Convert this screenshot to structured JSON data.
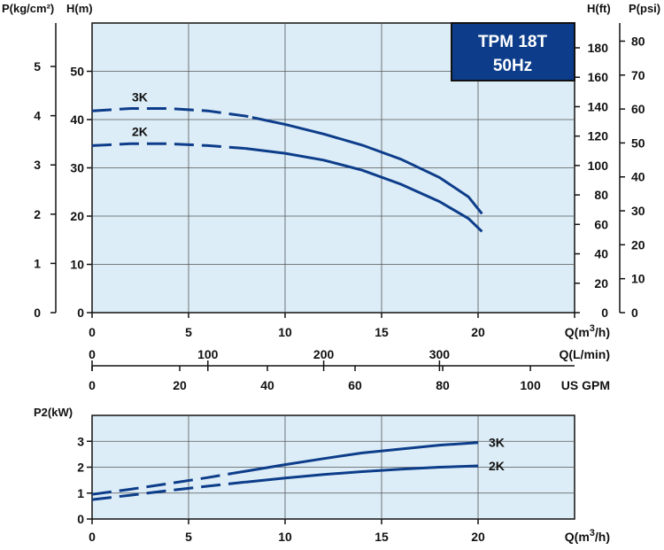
{
  "colors": {
    "plot_bg": "#dcedf7",
    "curve": "#0d3d8a",
    "axis": "#111111",
    "grid": "#555555",
    "title_bg": "#0d3d8a",
    "title_border": "#111111",
    "title_text": "#ffffff"
  },
  "chart_data": [
    {
      "type": "line",
      "title_lines": [
        "TPM 18T",
        "50Hz"
      ],
      "left_outer_axis": {
        "label": "P(kg/cm²)",
        "ticks": [
          {
            "v": 0,
            "t": "0"
          },
          {
            "v": 1,
            "t": "1"
          },
          {
            "v": 2,
            "t": "2"
          },
          {
            "v": 3,
            "t": "3"
          },
          {
            "v": 4,
            "t": "4"
          },
          {
            "v": 5,
            "t": "5"
          }
        ]
      },
      "left_inner_axis": {
        "label": "H(m)",
        "range": [
          0,
          60
        ],
        "ticks": [
          {
            "v": 0,
            "t": "0"
          },
          {
            "v": 10,
            "t": "10"
          },
          {
            "v": 20,
            "t": "20"
          },
          {
            "v": 30,
            "t": "30"
          },
          {
            "v": 40,
            "t": "40"
          },
          {
            "v": 50,
            "t": "50"
          }
        ]
      },
      "right_inner_axis": {
        "label": "H(ft)",
        "ticks": [
          {
            "v": 0,
            "t": "0"
          },
          {
            "v": 20,
            "t": "20"
          },
          {
            "v": 40,
            "t": "40"
          },
          {
            "v": 60,
            "t": "60"
          },
          {
            "v": 80,
            "t": "80"
          },
          {
            "v": 100,
            "t": "100"
          },
          {
            "v": 120,
            "t": "120"
          },
          {
            "v": 140,
            "t": "140"
          },
          {
            "v": 160,
            "t": "160"
          },
          {
            "v": 180,
            "t": "180"
          }
        ]
      },
      "right_outer_axis": {
        "label": "P(psi)",
        "ticks": [
          {
            "v": 0,
            "t": "0"
          },
          {
            "v": 10,
            "t": "10"
          },
          {
            "v": 20,
            "t": "20"
          },
          {
            "v": 30,
            "t": "30"
          },
          {
            "v": 40,
            "t": "40"
          },
          {
            "v": 50,
            "t": "50"
          },
          {
            "v": 60,
            "t": "60"
          },
          {
            "v": 70,
            "t": "70"
          },
          {
            "v": 80,
            "t": "80"
          }
        ]
      },
      "x_axis": {
        "label_main": "Q(m",
        "label_sup": "3",
        "label_end": "/h)",
        "range": [
          0,
          25
        ],
        "ticks": [
          {
            "v": 0,
            "t": "0"
          },
          {
            "v": 5,
            "t": "5"
          },
          {
            "v": 10,
            "t": "10"
          },
          {
            "v": 15,
            "t": "15"
          },
          {
            "v": 20,
            "t": "20"
          }
        ]
      },
      "lmin_axis": {
        "label": "Q(L/min)",
        "ticks": [
          {
            "v": 0,
            "t": "0"
          },
          {
            "v": 100,
            "t": "100"
          },
          {
            "v": 200,
            "t": "200"
          },
          {
            "v": 300,
            "t": "300"
          }
        ]
      },
      "gpm_axis": {
        "label": "US GPM",
        "ticks": [
          {
            "v": 0,
            "t": "0"
          },
          {
            "v": 20,
            "t": "20"
          },
          {
            "v": 40,
            "t": "40"
          },
          {
            "v": 60,
            "t": "60"
          },
          {
            "v": 80,
            "t": "80"
          },
          {
            "v": 100,
            "t": "100"
          }
        ]
      },
      "grid": true,
      "series": [
        {
          "name": "3K",
          "dash_until": 8.3,
          "points": [
            [
              0,
              41.8
            ],
            [
              2,
              42.3
            ],
            [
              4,
              42.3
            ],
            [
              6,
              41.8
            ],
            [
              8,
              40.7
            ],
            [
              10,
              39.0
            ],
            [
              12,
              37.0
            ],
            [
              14,
              34.7
            ],
            [
              16,
              31.8
            ],
            [
              18,
              28.0
            ],
            [
              19.5,
              24.0
            ],
            [
              20.2,
              20.5
            ]
          ]
        },
        {
          "name": "2K",
          "dash_until": 7.9,
          "points": [
            [
              0,
              34.6
            ],
            [
              2,
              35.0
            ],
            [
              4,
              35.0
            ],
            [
              6,
              34.6
            ],
            [
              8,
              34.0
            ],
            [
              10,
              33.0
            ],
            [
              12,
              31.6
            ],
            [
              14,
              29.5
            ],
            [
              16,
              26.6
            ],
            [
              18,
              23.0
            ],
            [
              19.5,
              19.5
            ],
            [
              20.2,
              16.8
            ]
          ]
        }
      ]
    },
    {
      "type": "line",
      "y_axis": {
        "label": "P2(kW)",
        "range": [
          0,
          4
        ],
        "ticks": [
          {
            "v": 0,
            "t": "0"
          },
          {
            "v": 1,
            "t": "1"
          },
          {
            "v": 2,
            "t": "2"
          },
          {
            "v": 3,
            "t": "3"
          }
        ]
      },
      "x_axis": {
        "label_main": "Q(m",
        "label_sup": "3",
        "label_end": "/h)",
        "range": [
          0,
          25
        ],
        "ticks": [
          {
            "v": 0,
            "t": "0"
          },
          {
            "v": 5,
            "t": "5"
          },
          {
            "v": 10,
            "t": "10"
          },
          {
            "v": 15,
            "t": "15"
          },
          {
            "v": 20,
            "t": "20"
          }
        ]
      },
      "grid": true,
      "series": [
        {
          "name": "3K",
          "dash_until": 7.3,
          "points": [
            [
              0,
              0.95
            ],
            [
              2,
              1.15
            ],
            [
              4,
              1.37
            ],
            [
              6,
              1.6
            ],
            [
              8,
              1.85
            ],
            [
              10,
              2.1
            ],
            [
              12,
              2.33
            ],
            [
              14,
              2.55
            ],
            [
              16,
              2.7
            ],
            [
              18,
              2.85
            ],
            [
              20,
              2.95
            ]
          ]
        },
        {
          "name": "2K",
          "dash_until": 7.9,
          "points": [
            [
              0,
              0.75
            ],
            [
              2,
              0.92
            ],
            [
              4,
              1.1
            ],
            [
              6,
              1.27
            ],
            [
              8,
              1.43
            ],
            [
              10,
              1.58
            ],
            [
              12,
              1.72
            ],
            [
              14,
              1.83
            ],
            [
              16,
              1.92
            ],
            [
              18,
              2.0
            ],
            [
              20,
              2.05
            ]
          ]
        }
      ]
    }
  ]
}
